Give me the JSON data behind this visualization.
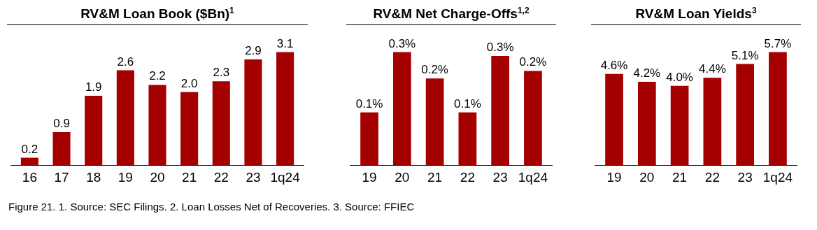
{
  "chart_data": [
    {
      "type": "bar",
      "title": "RV&M Loan Book ($Bn)$^{1}$",
      "categories": [
        "16",
        "17",
        "18",
        "19",
        "20",
        "21",
        "22",
        "23",
        "1q24"
      ],
      "values": [
        0.2,
        0.9,
        1.9,
        2.6,
        2.2,
        2.0,
        2.3,
        2.9,
        3.1
      ],
      "value_labels": [
        "0.2",
        "0.9",
        "1.9",
        "2.6",
        "2.2",
        "2.0",
        "2.3",
        "2.9",
        "3.1"
      ],
      "color": "#a50000"
    },
    {
      "type": "bar",
      "title": "RV&M Net Charge-Offs$^{1,2}$",
      "categories": [
        "19",
        "20",
        "21",
        "22",
        "23",
        "1q24"
      ],
      "values": [
        0.14,
        0.3,
        0.23,
        0.14,
        0.29,
        0.25
      ],
      "value_labels": [
        "0.1%",
        "0.3%",
        "0.2%",
        "0.1%",
        "0.3%",
        "0.2%"
      ],
      "color": "#a50000"
    },
    {
      "type": "bar",
      "title": "RV&M Loan Yields$^{3}$",
      "categories": [
        "19",
        "20",
        "21",
        "22",
        "23",
        "1q24"
      ],
      "values": [
        4.6,
        4.2,
        4.0,
        4.4,
        5.1,
        5.7
      ],
      "value_labels": [
        "4.6%",
        "4.2%",
        "4.0%",
        "4.4%",
        "5.1%",
        "5.7%"
      ],
      "color": "#a50000",
      "annotations": [
        "Figure 21. 1. Source: SEC Filings.  2. Loan Losses Net of Recoveries.  3. Source: FFIEC"
      ]
    }
  ]
}
